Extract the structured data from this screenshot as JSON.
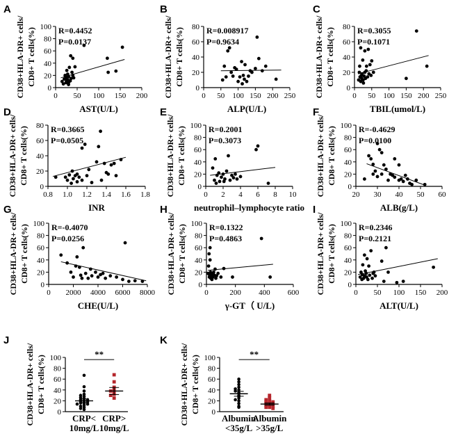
{
  "figure": {
    "y_axis_label_line1": "CD38+HLA-DR+ cells/",
    "y_axis_label_line2": "CD8+ T cells(%)",
    "marker_color": "#000000",
    "group2_color": "#b5262c"
  },
  "chart_data": [
    {
      "panel": "A",
      "type": "scatter",
      "xlabel": "AST(U/L)",
      "xlim": [
        0,
        200
      ],
      "xticks": [
        0,
        50,
        100,
        150,
        200
      ],
      "ylim": [
        0,
        100
      ],
      "yticks": [
        0,
        20,
        40,
        60,
        80,
        100
      ],
      "stats": {
        "r": "R=0.4452",
        "p": "P=0.0137"
      },
      "fit": {
        "x0": 12,
        "y0": 16,
        "x1": 160,
        "y1": 46
      },
      "points": [
        [
          15,
          10
        ],
        [
          18,
          6
        ],
        [
          20,
          14
        ],
        [
          22,
          20
        ],
        [
          24,
          17
        ],
        [
          25,
          12
        ],
        [
          26,
          28
        ],
        [
          28,
          13
        ],
        [
          30,
          8
        ],
        [
          30,
          18
        ],
        [
          32,
          33
        ],
        [
          34,
          11
        ],
        [
          35,
          52
        ],
        [
          36,
          15
        ],
        [
          38,
          25
        ],
        [
          40,
          48
        ],
        [
          40,
          20
        ],
        [
          42,
          16
        ],
        [
          45,
          34
        ],
        [
          30,
          5
        ],
        [
          24,
          8
        ],
        [
          66,
          69
        ],
        [
          120,
          48
        ],
        [
          122,
          25
        ],
        [
          140,
          27
        ],
        [
          155,
          66
        ],
        [
          28,
          22
        ]
      ]
    },
    {
      "panel": "B",
      "type": "scatter",
      "xlabel": "ALP(U/L)",
      "xlim": [
        0,
        250
      ],
      "xticks": [
        0,
        50,
        100,
        150,
        200,
        250
      ],
      "ylim": [
        0,
        80
      ],
      "yticks": [
        0,
        20,
        40,
        60,
        80
      ],
      "stats": {
        "r": "R=0.008917",
        "p": "P=0.9634"
      },
      "fit": {
        "x0": 50,
        "y0": 22,
        "x1": 225,
        "y1": 23
      },
      "points": [
        [
          55,
          10
        ],
        [
          60,
          28
        ],
        [
          65,
          14
        ],
        [
          70,
          48
        ],
        [
          75,
          52
        ],
        [
          80,
          20
        ],
        [
          85,
          15
        ],
        [
          90,
          26
        ],
        [
          95,
          24
        ],
        [
          100,
          8
        ],
        [
          105,
          14
        ],
        [
          110,
          34
        ],
        [
          112,
          5
        ],
        [
          115,
          16
        ],
        [
          118,
          11
        ],
        [
          120,
          30
        ],
        [
          125,
          8
        ],
        [
          130,
          15
        ],
        [
          135,
          22
        ],
        [
          140,
          20
        ],
        [
          150,
          25
        ],
        [
          155,
          66
        ],
        [
          160,
          38
        ],
        [
          170,
          22
        ],
        [
          180,
          28
        ],
        [
          210,
          11
        ]
      ]
    },
    {
      "panel": "C",
      "type": "scatter",
      "xlabel": "TBIL(umol/L)",
      "xlim": [
        0,
        250
      ],
      "xticks": [
        0,
        50,
        100,
        150,
        200,
        250
      ],
      "ylim": [
        0,
        80
      ],
      "yticks": [
        0,
        20,
        40,
        60,
        80
      ],
      "stats": {
        "r": "R=0.3055",
        "p": "P=0.1071"
      },
      "fit": {
        "x0": 10,
        "y0": 18,
        "x1": 215,
        "y1": 42
      },
      "points": [
        [
          12,
          10
        ],
        [
          14,
          20
        ],
        [
          15,
          28
        ],
        [
          16,
          14
        ],
        [
          18,
          8
        ],
        [
          18,
          52
        ],
        [
          20,
          16
        ],
        [
          21,
          12
        ],
        [
          22,
          18
        ],
        [
          24,
          36
        ],
        [
          25,
          10
        ],
        [
          26,
          6
        ],
        [
          28,
          15
        ],
        [
          30,
          20
        ],
        [
          30,
          48
        ],
        [
          32,
          12
        ],
        [
          34,
          22
        ],
        [
          35,
          28
        ],
        [
          38,
          14
        ],
        [
          40,
          50
        ],
        [
          42,
          18
        ],
        [
          45,
          30
        ],
        [
          48,
          16
        ],
        [
          50,
          35
        ],
        [
          55,
          20
        ],
        [
          150,
          12
        ],
        [
          180,
          74
        ],
        [
          210,
          28
        ]
      ]
    },
    {
      "panel": "D",
      "type": "scatter",
      "xlabel": "INR",
      "xlim": [
        0.8,
        1.8
      ],
      "xticks": [
        0.8,
        1.0,
        1.2,
        1.4,
        1.6,
        1.8
      ],
      "ylim": [
        0,
        80
      ],
      "yticks": [
        0,
        20,
        40,
        60,
        80
      ],
      "stats": {
        "r": "R=0.3665",
        "p": "P=0.0505"
      },
      "fit": {
        "x0": 0.85,
        "y0": 13,
        "x1": 1.6,
        "y1": 38
      },
      "points": [
        [
          0.88,
          12
        ],
        [
          0.98,
          12
        ],
        [
          1.0,
          8
        ],
        [
          1.02,
          15
        ],
        [
          1.04,
          4
        ],
        [
          1.05,
          20
        ],
        [
          1.06,
          10
        ],
        [
          1.08,
          14
        ],
        [
          1.1,
          6
        ],
        [
          1.1,
          16
        ],
        [
          1.12,
          12
        ],
        [
          1.15,
          8
        ],
        [
          1.15,
          50
        ],
        [
          1.18,
          55
        ],
        [
          1.2,
          14
        ],
        [
          1.22,
          22
        ],
        [
          1.25,
          5
        ],
        [
          1.3,
          32
        ],
        [
          1.32,
          52
        ],
        [
          1.34,
          72
        ],
        [
          1.35,
          8
        ],
        [
          1.38,
          30
        ],
        [
          1.4,
          18
        ],
        [
          1.42,
          16
        ],
        [
          1.45,
          28
        ],
        [
          1.48,
          30
        ],
        [
          1.5,
          14
        ],
        [
          1.55,
          35
        ]
      ]
    },
    {
      "panel": "E",
      "type": "scatter",
      "xlabel": "neutrophil–lymphocyte ratio",
      "xlim": [
        0,
        10
      ],
      "xticks": [
        0,
        2,
        4,
        6,
        8,
        10
      ],
      "ylim": [
        0,
        100
      ],
      "yticks": [
        0,
        20,
        40,
        60,
        80,
        100
      ],
      "stats": {
        "r": "R=0.2001",
        "p": "P=0.3073"
      },
      "fit": {
        "x0": 0.5,
        "y0": 18,
        "x1": 8,
        "y1": 31
      },
      "points": [
        [
          0.8,
          30
        ],
        [
          1.0,
          10
        ],
        [
          1.2,
          5
        ],
        [
          1.3,
          18
        ],
        [
          1.5,
          22
        ],
        [
          1.6,
          8
        ],
        [
          1.8,
          15
        ],
        [
          2.0,
          20
        ],
        [
          2.2,
          12
        ],
        [
          2.4,
          25
        ],
        [
          2.6,
          50
        ],
        [
          2.8,
          10
        ],
        [
          3.0,
          18
        ],
        [
          3.2,
          14
        ],
        [
          3.4,
          20
        ],
        [
          3.6,
          12
        ],
        [
          4.0,
          16
        ],
        [
          5.8,
          60
        ],
        [
          6.0,
          66
        ],
        [
          7.2,
          5
        ],
        [
          2.1,
          8
        ],
        [
          1.1,
          45
        ]
      ]
    },
    {
      "panel": "F",
      "type": "scatter",
      "xlabel": "ALB(g/L)",
      "xlim": [
        20,
        60
      ],
      "xticks": [
        20,
        30,
        40,
        50,
        60
      ],
      "ylim": [
        0,
        100
      ],
      "yticks": [
        0,
        20,
        40,
        60,
        80,
        100
      ],
      "stats": {
        "r": "R=-0.4629",
        "p": "P=0.0100"
      },
      "fit": {
        "x0": 25,
        "y0": 37,
        "x1": 52,
        "y1": 2
      },
      "points": [
        [
          24,
          12
        ],
        [
          26,
          50
        ],
        [
          27,
          45
        ],
        [
          28,
          36
        ],
        [
          28,
          20
        ],
        [
          29,
          25
        ],
        [
          30,
          16
        ],
        [
          30,
          70
        ],
        [
          31,
          60
        ],
        [
          32,
          20
        ],
        [
          32,
          55
        ],
        [
          33,
          35
        ],
        [
          34,
          28
        ],
        [
          35,
          10
        ],
        [
          36,
          20
        ],
        [
          37,
          18
        ],
        [
          38,
          15
        ],
        [
          38,
          45
        ],
        [
          40,
          10
        ],
        [
          40,
          35
        ],
        [
          41,
          12
        ],
        [
          42,
          8
        ],
        [
          43,
          18
        ],
        [
          45,
          5
        ],
        [
          46,
          3
        ],
        [
          48,
          10
        ],
        [
          52,
          3
        ],
        [
          44,
          12
        ]
      ]
    },
    {
      "panel": "G",
      "type": "scatter",
      "xlabel": "CHE(U/L)",
      "xlim": [
        0,
        8000
      ],
      "xticks": [
        0,
        2000,
        4000,
        6000,
        8000
      ],
      "ylim": [
        0,
        100
      ],
      "yticks": [
        0,
        20,
        40,
        60,
        80,
        100
      ],
      "stats": {
        "r": "R=-0.4070",
        "p": "P=0.0256"
      },
      "fit": {
        "x0": 1000,
        "y0": 37,
        "x1": 7900,
        "y1": 6
      },
      "points": [
        [
          1000,
          48
        ],
        [
          1500,
          35
        ],
        [
          1800,
          20
        ],
        [
          2000,
          12
        ],
        [
          2200,
          30
        ],
        [
          2300,
          45
        ],
        [
          2500,
          28
        ],
        [
          2600,
          15
        ],
        [
          2800,
          60
        ],
        [
          3000,
          18
        ],
        [
          3200,
          10
        ],
        [
          3400,
          25
        ],
        [
          3500,
          14
        ],
        [
          3800,
          20
        ],
        [
          4000,
          12
        ],
        [
          4200,
          16
        ],
        [
          4400,
          18
        ],
        [
          4600,
          10
        ],
        [
          5000,
          14
        ],
        [
          5500,
          12
        ],
        [
          6000,
          8
        ],
        [
          6200,
          68
        ],
        [
          6500,
          5
        ],
        [
          7000,
          6
        ],
        [
          7600,
          5
        ],
        [
          2700,
          10
        ]
      ]
    },
    {
      "panel": "H",
      "type": "scatter",
      "xlabel": "γ-GT（ U/L)",
      "xlim": [
        0,
        600
      ],
      "xticks": [
        0,
        200,
        400,
        600
      ],
      "ylim": [
        0,
        100
      ],
      "yticks": [
        0,
        20,
        40,
        60,
        80,
        100
      ],
      "stats": {
        "r": "R=0.1322",
        "p": "P=0.4863"
      },
      "fit": {
        "x0": 10,
        "y0": 23,
        "x1": 460,
        "y1": 33
      },
      "points": [
        [
          10,
          18
        ],
        [
          15,
          30
        ],
        [
          18,
          50
        ],
        [
          20,
          12
        ],
        [
          22,
          15
        ],
        [
          25,
          40
        ],
        [
          28,
          20
        ],
        [
          30,
          10
        ],
        [
          32,
          14
        ],
        [
          35,
          16
        ],
        [
          38,
          8
        ],
        [
          40,
          18
        ],
        [
          45,
          12
        ],
        [
          50,
          20
        ],
        [
          55,
          15
        ],
        [
          60,
          25
        ],
        [
          65,
          10
        ],
        [
          70,
          14
        ],
        [
          80,
          18
        ],
        [
          100,
          12
        ],
        [
          120,
          26
        ],
        [
          180,
          12
        ],
        [
          380,
          75
        ],
        [
          440,
          12
        ],
        [
          25,
          60
        ]
      ]
    },
    {
      "panel": "I",
      "type": "scatter",
      "xlabel": "ALT(U/L)",
      "xlim": [
        0,
        200
      ],
      "xticks": [
        0,
        50,
        100,
        150,
        200
      ],
      "ylim": [
        0,
        100
      ],
      "yticks": [
        0,
        20,
        40,
        60,
        80,
        100
      ],
      "stats": {
        "r": "R=0.2346",
        "p": "P=0.2121"
      },
      "fit": {
        "x0": 5,
        "y0": 16,
        "x1": 190,
        "y1": 42
      },
      "points": [
        [
          10,
          12
        ],
        [
          12,
          20
        ],
        [
          14,
          8
        ],
        [
          15,
          16
        ],
        [
          16,
          32
        ],
        [
          18,
          10
        ],
        [
          20,
          48
        ],
        [
          20,
          14
        ],
        [
          22,
          22
        ],
        [
          24,
          18
        ],
        [
          25,
          12
        ],
        [
          26,
          42
        ],
        [
          28,
          8
        ],
        [
          30,
          30
        ],
        [
          32,
          15
        ],
        [
          35,
          55
        ],
        [
          38,
          10
        ],
        [
          40,
          18
        ],
        [
          42,
          20
        ],
        [
          45,
          14
        ],
        [
          60,
          38
        ],
        [
          65,
          5
        ],
        [
          70,
          60
        ],
        [
          75,
          20
        ],
        [
          95,
          3
        ],
        [
          110,
          5
        ],
        [
          180,
          28
        ]
      ]
    },
    {
      "panel": "J",
      "type": "dot-strip",
      "categories": [
        "CRP<\n10mg/L",
        "CRP>\n10mg/L"
      ],
      "ylim": [
        0,
        100
      ],
      "yticks": [
        0,
        20,
        40,
        60,
        80,
        100
      ],
      "significance": "**",
      "groups": [
        {
          "values": [
            67,
            46,
            38,
            32,
            30,
            28,
            26,
            24,
            22,
            22,
            20,
            18,
            18,
            16,
            16,
            14,
            14,
            12,
            10,
            8,
            6,
            4
          ],
          "mean": 20,
          "sem": 3.5
        },
        {
          "values": [
            68,
            55,
            45,
            40,
            38,
            35,
            32,
            30,
            25
          ],
          "mean": 38,
          "sem": 6.5
        }
      ]
    },
    {
      "panel": "K",
      "type": "dot-strip",
      "categories": [
        "Albumin\n<35g/L",
        "Albumin\n>35g/L"
      ],
      "ylim": [
        0,
        100
      ],
      "yticks": [
        0,
        20,
        40,
        60,
        80,
        100
      ],
      "significance": "**",
      "groups": [
        {
          "values": [
            60,
            55,
            50,
            45,
            42,
            40,
            38,
            35,
            30,
            28,
            25,
            22,
            20,
            15,
            10,
            8
          ],
          "mean": 33,
          "sem": 4.5
        },
        {
          "values": [
            30,
            25,
            22,
            20,
            18,
            18,
            16,
            15,
            14,
            12,
            12,
            10,
            8,
            8,
            6
          ],
          "mean": 14,
          "sem": 2
        }
      ]
    }
  ]
}
